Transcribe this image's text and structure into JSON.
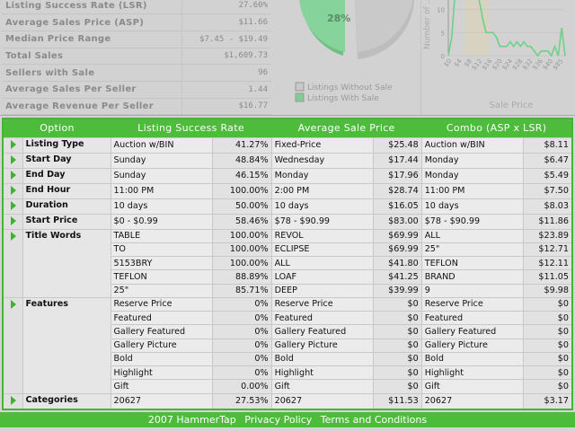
{
  "summary": [
    {
      "label": "Listing Success Rate (LSR)",
      "value": "27.60%"
    },
    {
      "label": "Average Sales Price (ASP)",
      "value": "$11.66"
    },
    {
      "label": "Median Price Range",
      "value": "$7.45 - $19.49"
    },
    {
      "label": "Total Sales",
      "value": "$1,609.73"
    },
    {
      "label": "Sellers with Sale",
      "value": "96"
    },
    {
      "label": "Average Sales Per Seller",
      "value": "1.44"
    },
    {
      "label": "Average Revenue Per Seller",
      "value": "$16.77"
    }
  ],
  "chart_data": [
    {
      "type": "pie",
      "slices": [
        {
          "name": "Listings Without Sale",
          "value": 72
        },
        {
          "name": "Listings With Sale",
          "value": 28,
          "label": "28%"
        }
      ],
      "legend": [
        "Listings Without Sale",
        "Listings With Sale"
      ],
      "colors": [
        "#c8c8c8",
        "#7fcf94"
      ],
      "legend_placement": "bottom"
    },
    {
      "type": "line",
      "ylabel": "Number of ...",
      "xlabel": "Sale Price",
      "yticks": [
        0,
        5,
        10
      ],
      "xticks": [
        "$0",
        "$4",
        "$8",
        "$12",
        "$16",
        "$20",
        "$24",
        "$28",
        "$32",
        "$36",
        "$40",
        "$85"
      ],
      "ylim": [
        0,
        14
      ],
      "highlight_range": [
        "$7.45",
        "$19.49"
      ],
      "values": [
        0,
        4,
        14,
        14,
        14,
        14,
        14,
        14,
        14,
        12,
        8,
        5,
        5,
        5,
        4,
        2,
        2,
        2,
        3,
        2,
        3,
        2,
        3,
        2,
        2,
        1,
        0,
        1,
        1,
        1,
        0,
        2,
        0,
        6,
        0
      ],
      "color": "#6fd08a"
    }
  ],
  "grid": {
    "headers": [
      "Option",
      "Listing Success Rate",
      "Average Sale Price",
      "Combo (ASP x LSR)"
    ],
    "groups": [
      {
        "option": "Listing Type",
        "rows": [
          [
            "Auction w/BIN",
            "41.27%",
            "Fixed-Price",
            "$25.48",
            "Auction w/BIN",
            "$8.11"
          ]
        ]
      },
      {
        "option": "Start Day",
        "rows": [
          [
            "Sunday",
            "48.84%",
            "Wednesday",
            "$17.44",
            "Monday",
            "$6.47"
          ]
        ]
      },
      {
        "option": "End Day",
        "rows": [
          [
            "Sunday",
            "46.15%",
            "Monday",
            "$17.96",
            "Monday",
            "$5.49"
          ]
        ]
      },
      {
        "option": "End Hour",
        "rows": [
          [
            "11:00 PM",
            "100.00%",
            "2:00 PM",
            "$28.74",
            "11:00 PM",
            "$7.50"
          ]
        ]
      },
      {
        "option": "Duration",
        "rows": [
          [
            "10 days",
            "50.00%",
            "10 days",
            "$16.05",
            "10 days",
            "$8.03"
          ]
        ]
      },
      {
        "option": "Start Price",
        "rows": [
          [
            "$0 - $0.99",
            "58.46%",
            "$78 - $90.99",
            "$83.00",
            "$78 - $90.99",
            "$11.86"
          ]
        ]
      },
      {
        "option": "Title Words",
        "rows": [
          [
            "TABLE",
            "100.00%",
            "REVOL",
            "$69.99",
            "ALL",
            "$23.89"
          ],
          [
            "TO",
            "100.00%",
            "ECLIPSE",
            "$69.99",
            "25\"",
            "$12.71"
          ],
          [
            "5153BRY",
            "100.00%",
            "ALL",
            "$41.80",
            "TEFLON",
            "$12.11"
          ],
          [
            "TEFLON",
            "88.89%",
            "LOAF",
            "$41.25",
            "BRAND",
            "$11.05"
          ],
          [
            "25\"",
            "85.71%",
            "DEEP",
            "$39.99",
            "9",
            "$9.98"
          ]
        ]
      },
      {
        "option": "Features",
        "rows": [
          [
            "Reserve Price",
            "0%",
            "Reserve Price",
            "$0",
            "Reserve Price",
            "$0"
          ],
          [
            "Featured",
            "0%",
            "Featured",
            "$0",
            "Featured",
            "$0"
          ],
          [
            "Gallery Featured",
            "0%",
            "Gallery Featured",
            "$0",
            "Gallery Featured",
            "$0"
          ],
          [
            "Gallery Picture",
            "0%",
            "Gallery Picture",
            "$0",
            "Gallery Picture",
            "$0"
          ],
          [
            "Bold",
            "0%",
            "Bold",
            "$0",
            "Bold",
            "$0"
          ],
          [
            "Highlight",
            "0%",
            "Highlight",
            "$0",
            "Highlight",
            "$0"
          ],
          [
            "Gift",
            "0.00%",
            "Gift",
            "$0",
            "Gift",
            "$0"
          ]
        ]
      },
      {
        "option": "Categories",
        "rows": [
          [
            "20627",
            "27.53%",
            "20627",
            "$11.53",
            "20627",
            "$3.17"
          ]
        ]
      }
    ]
  },
  "footer": {
    "copyright": "2007 HammerTap",
    "privacy": "Privacy Policy",
    "terms": "Terms and Conditions"
  }
}
